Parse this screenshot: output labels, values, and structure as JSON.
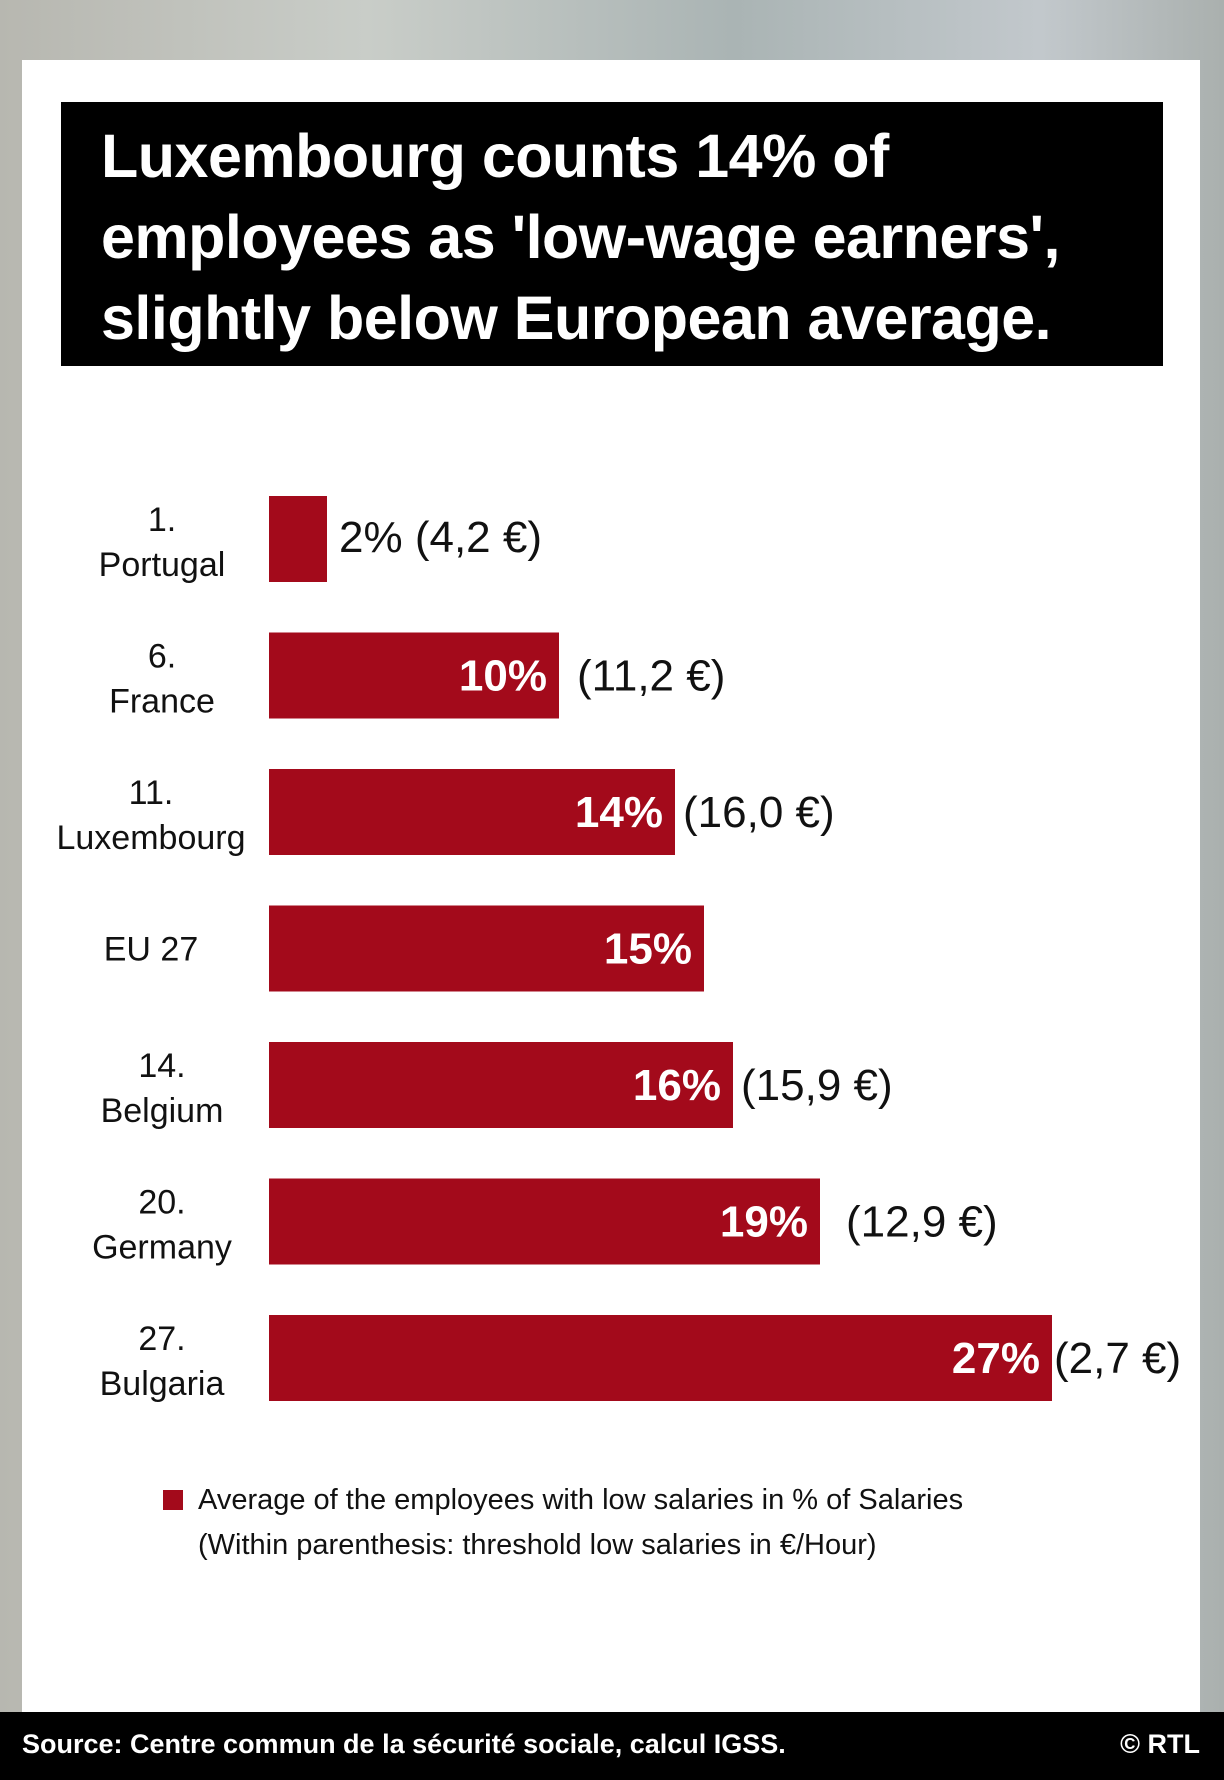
{
  "title_lines": [
    "Luxembourg counts 14% of",
    "employees as 'low-wage earners',",
    "slightly below European average."
  ],
  "chart_data": {
    "type": "bar",
    "orientation": "horizontal",
    "title": "Luxembourg counts 14% of employees as 'low-wage earners', slightly below European average.",
    "categories": [
      {
        "rank": "1.",
        "country": "Portugal"
      },
      {
        "rank": "6.",
        "country": "France"
      },
      {
        "rank": "11.",
        "country": "Luxembourg"
      },
      {
        "rank": "",
        "country": "EU 27"
      },
      {
        "rank": "14.",
        "country": "Belgium"
      },
      {
        "rank": "20.",
        "country": "Germany"
      },
      {
        "rank": "27.",
        "country": "Bulgaria"
      }
    ],
    "values": [
      2,
      10,
      14,
      15,
      16,
      19,
      27
    ],
    "value_labels": [
      "2%",
      "10%",
      "14%",
      "15%",
      "16%",
      "19%",
      "27%"
    ],
    "thresholds": [
      4.2,
      11.2,
      16.0,
      null,
      15.9,
      12.9,
      2.7
    ],
    "threshold_labels": [
      "(4,2 €)",
      "(11,2 €)",
      "(16,0 €)",
      "",
      "(15,9 €)",
      "(12,9 €)",
      "(2,7 €)"
    ],
    "series_name": "Average of the employees with low salaries in % of Salaries",
    "xlim": [
      0,
      27
    ],
    "grid": false,
    "color": "#a30a1b"
  },
  "legend": {
    "line1": "Average of the employees with low salaries in % of Salaries",
    "line2": "(Within parenthesis: threshold low salaries in €/Hour)"
  },
  "footer": {
    "source": "Source: Centre commun de la sécurité sociale, calcul IGSS.",
    "copyright": "© RTL"
  },
  "colors": {
    "bar": "#a30a1b",
    "title_bg": "#000000",
    "text": "#111111"
  }
}
